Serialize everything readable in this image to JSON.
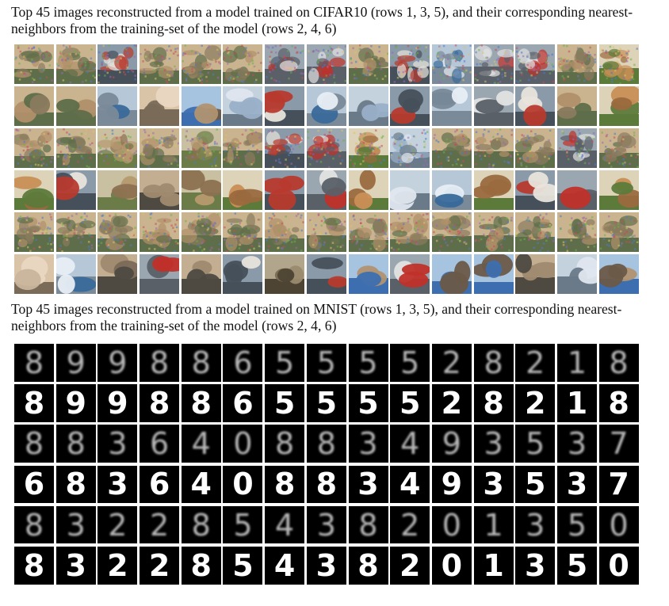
{
  "captions": {
    "cifar": "Top 45 images reconstructed from a model trained on CIFAR10 (rows 1, 3, 5), and their corresponding nearest-neighbors from the training-set of the model (rows 2, 4, 6)",
    "mnist": "Top 45 images reconstructed from a model trained on MNIST (rows 1, 3, 5), and their corresponding nearest-neighbors from the training-set of the model (rows 2, 4, 6)"
  },
  "cifar": {
    "rows": [
      {
        "type": "reconstruction",
        "cells": [
          "animal",
          "animal",
          "truck",
          "animal",
          "animal",
          "animal",
          "car",
          "car",
          "animal",
          "truck",
          "ship",
          "car",
          "car",
          "animal",
          "horse"
        ]
      },
      {
        "type": "nearest-neighbor",
        "cells": [
          "animal",
          "animal",
          "ship",
          "dog",
          "bird",
          "airplane",
          "truck",
          "ship",
          "airplane",
          "truck",
          "ship",
          "car",
          "truck",
          "animal",
          "horse"
        ]
      },
      {
        "type": "reconstruction",
        "cells": [
          "animal",
          "animal",
          "deer",
          "animal",
          "deer",
          "animal",
          "truck",
          "car",
          "horse",
          "airplane",
          "animal",
          "animal",
          "animal",
          "car",
          "animal"
        ]
      },
      {
        "type": "nearest-neighbor",
        "cells": [
          "horse",
          "truck",
          "deer",
          "cat",
          "deer",
          "horse",
          "truck",
          "car",
          "horse",
          "airplane",
          "ship",
          "horse",
          "truck",
          "car",
          "horse"
        ]
      },
      {
        "type": "reconstruction",
        "cells": [
          "animal",
          "animal",
          "animal",
          "animal",
          "animal",
          "animal",
          "animal",
          "animal",
          "animal",
          "animal",
          "animal",
          "animal",
          "animal",
          "animal",
          "animal"
        ]
      },
      {
        "type": "nearest-neighbor",
        "cells": [
          "dog",
          "ship",
          "cat",
          "car",
          "cat",
          "truck",
          "frog",
          "truck",
          "bird",
          "car",
          "bird",
          "bird",
          "cat",
          "airplane",
          "bird"
        ]
      }
    ]
  },
  "mnist": {
    "rows": [
      {
        "type": "reconstruction",
        "digits": [
          "8",
          "9",
          "9",
          "8",
          "8",
          "6",
          "5",
          "5",
          "5",
          "5",
          "2",
          "8",
          "2",
          "1",
          "8"
        ]
      },
      {
        "type": "nearest-neighbor",
        "digits": [
          "8",
          "9",
          "9",
          "8",
          "8",
          "6",
          "5",
          "5",
          "5",
          "5",
          "2",
          "8",
          "2",
          "1",
          "8"
        ]
      },
      {
        "type": "reconstruction",
        "digits": [
          "8",
          "8",
          "3",
          "6",
          "4",
          "0",
          "8",
          "8",
          "3",
          "4",
          "9",
          "3",
          "5",
          "3",
          "7"
        ]
      },
      {
        "type": "nearest-neighbor",
        "digits": [
          "6",
          "8",
          "3",
          "6",
          "4",
          "0",
          "8",
          "8",
          "3",
          "4",
          "9",
          "3",
          "5",
          "3",
          "7"
        ]
      },
      {
        "type": "reconstruction",
        "digits": [
          "8",
          "3",
          "2",
          "2",
          "8",
          "5",
          "4",
          "3",
          "8",
          "2",
          "0",
          "1",
          "3",
          "5",
          "0"
        ]
      },
      {
        "type": "nearest-neighbor",
        "digits": [
          "8",
          "3",
          "2",
          "2",
          "8",
          "5",
          "4",
          "3",
          "8",
          "2",
          "0",
          "1",
          "3",
          "5",
          "0"
        ]
      }
    ]
  },
  "palette": {
    "animal": [
      "#8a7a5e",
      "#b0906a",
      "#5f6e4a",
      "#c9b48f"
    ],
    "horse": [
      "#9a6a3e",
      "#c98f56",
      "#5c7a3a",
      "#dcd3b8"
    ],
    "deer": [
      "#8c7150",
      "#b79a6f",
      "#6b7c48",
      "#c8c0a0"
    ],
    "dog": [
      "#c8b59c",
      "#e9d7c2",
      "#7a6a58",
      "#d9c4a8"
    ],
    "cat": [
      "#7b6a58",
      "#a08a70",
      "#4e4a42",
      "#c3ae92"
    ],
    "bird": [
      "#6a5a48",
      "#b09370",
      "#3d6fb0",
      "#a6c3e0"
    ],
    "frog": [
      "#7a6a52",
      "#9a8a6e",
      "#4e4434",
      "#b1a58c"
    ],
    "truck": [
      "#b83a2e",
      "#e8e4dc",
      "#46505a",
      "#8a9aa8"
    ],
    "car": [
      "#c0302a",
      "#e2e2e2",
      "#5a6068",
      "#9aa6b0"
    ],
    "ship": [
      "#3a6a9a",
      "#e8eef4",
      "#7a8a98",
      "#b6c8d8"
    ],
    "airplane": [
      "#9ab0c8",
      "#dfe6ee",
      "#6a7a88",
      "#c4d2de"
    ]
  }
}
